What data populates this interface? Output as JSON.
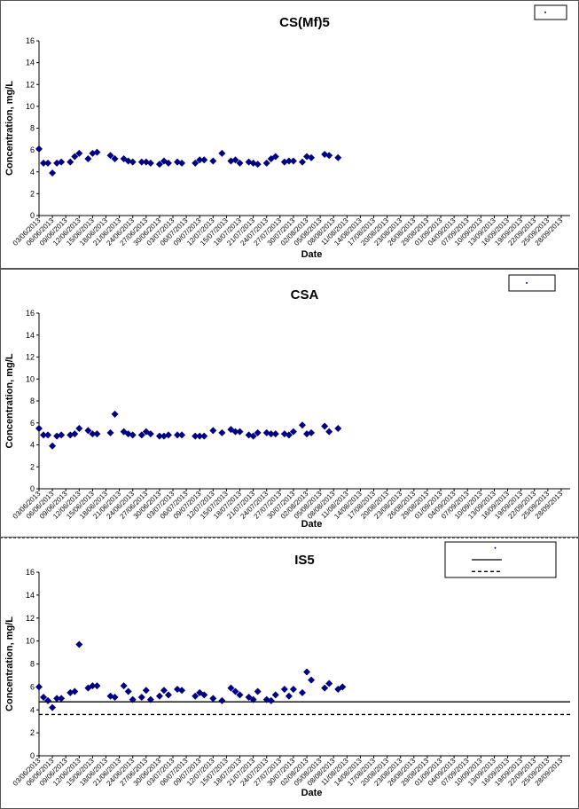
{
  "chart_data": [
    {
      "type": "scatter",
      "title": "CS(Mf)5",
      "xlabel": "Date",
      "ylabel": "Concentration, mg/L",
      "ylim": [
        0,
        16
      ],
      "yticks": [
        0,
        2,
        4,
        6,
        8,
        10,
        12,
        14,
        16
      ],
      "grid": false,
      "legend": "top-right",
      "xlim": [
        "03/06/2013",
        "30/09/2013"
      ],
      "xticks": [
        "03/06/2013",
        "06/06/2013",
        "09/06/2013",
        "12/06/2013",
        "15/06/2013",
        "18/06/2013",
        "21/06/2013",
        "24/06/2013",
        "27/06/2013",
        "30/06/2013",
        "03/07/2013",
        "06/07/2013",
        "09/07/2013",
        "12/07/2013",
        "15/07/2013",
        "18/07/2013",
        "21/07/2013",
        "24/07/2013",
        "27/07/2013",
        "30/07/2013",
        "02/08/2013",
        "05/08/2013",
        "08/08/2013",
        "11/08/2013",
        "14/08/2013",
        "17/08/2013",
        "20/08/2013",
        "23/08/2013",
        "26/08/2013",
        "29/08/2013",
        "01/09/2013",
        "04/09/2013",
        "07/09/2013",
        "10/09/2013",
        "13/09/2013",
        "16/09/2013",
        "19/09/2013",
        "22/09/2013",
        "25/09/2013",
        "28/09/2013"
      ],
      "series": [
        {
          "color": "#000080",
          "marker": "diamond",
          "points": [
            [
              "03/06/2013",
              6.1
            ],
            [
              "04/06/2013",
              4.8
            ],
            [
              "05/06/2013",
              4.8
            ],
            [
              "06/06/2013",
              3.9
            ],
            [
              "07/06/2013",
              4.8
            ],
            [
              "08/06/2013",
              4.9
            ],
            [
              "10/06/2013",
              4.9
            ],
            [
              "11/06/2013",
              5.4
            ],
            [
              "12/06/2013",
              5.7
            ],
            [
              "14/06/2013",
              5.2
            ],
            [
              "15/06/2013",
              5.7
            ],
            [
              "16/06/2013",
              5.8
            ],
            [
              "19/06/2013",
              5.5
            ],
            [
              "20/06/2013",
              5.2
            ],
            [
              "22/06/2013",
              5.2
            ],
            [
              "23/06/2013",
              5.0
            ],
            [
              "24/06/2013",
              4.9
            ],
            [
              "26/06/2013",
              4.9
            ],
            [
              "27/06/2013",
              4.9
            ],
            [
              "28/06/2013",
              4.8
            ],
            [
              "30/06/2013",
              4.7
            ],
            [
              "01/07/2013",
              5.0
            ],
            [
              "02/07/2013",
              4.8
            ],
            [
              "04/07/2013",
              4.9
            ],
            [
              "05/07/2013",
              4.8
            ],
            [
              "08/07/2013",
              4.8
            ],
            [
              "09/07/2013",
              5.1
            ],
            [
              "10/07/2013",
              5.1
            ],
            [
              "12/07/2013",
              5.0
            ],
            [
              "14/07/2013",
              5.7
            ],
            [
              "16/07/2013",
              5.0
            ],
            [
              "17/07/2013",
              5.1
            ],
            [
              "18/07/2013",
              4.8
            ],
            [
              "20/07/2013",
              4.9
            ],
            [
              "21/07/2013",
              4.8
            ],
            [
              "22/07/2013",
              4.7
            ],
            [
              "24/07/2013",
              4.8
            ],
            [
              "25/07/2013",
              5.2
            ],
            [
              "26/07/2013",
              5.4
            ],
            [
              "28/07/2013",
              4.9
            ],
            [
              "29/07/2013",
              5.0
            ],
            [
              "30/07/2013",
              5.0
            ],
            [
              "01/08/2013",
              4.9
            ],
            [
              "02/08/2013",
              5.4
            ],
            [
              "03/08/2013",
              5.3
            ],
            [
              "06/08/2013",
              5.6
            ],
            [
              "07/08/2013",
              5.5
            ],
            [
              "09/08/2013",
              5.3
            ]
          ]
        }
      ]
    },
    {
      "type": "scatter",
      "title": "CSA",
      "xlabel": "Date",
      "ylabel": "Concentration, mg/L",
      "ylim": [
        0,
        16
      ],
      "yticks": [
        0,
        2,
        4,
        6,
        8,
        10,
        12,
        14,
        16
      ],
      "grid": false,
      "legend": "top-right",
      "xlim": [
        "03/06/2013",
        "30/09/2013"
      ],
      "xticks": [
        "03/06/2013",
        "06/06/2013",
        "09/06/2013",
        "12/06/2013",
        "15/06/2013",
        "18/06/2013",
        "21/06/2013",
        "24/06/2013",
        "27/06/2013",
        "30/06/2013",
        "03/07/2013",
        "06/07/2013",
        "09/07/2013",
        "12/07/2013",
        "15/07/2013",
        "18/07/2013",
        "21/07/2013",
        "24/07/2013",
        "27/07/2013",
        "30/07/2013",
        "02/08/2013",
        "05/08/2013",
        "08/08/2013",
        "11/08/2013",
        "14/08/2013",
        "17/08/2013",
        "20/08/2013",
        "23/08/2013",
        "26/08/2013",
        "29/08/2013",
        "01/09/2013",
        "04/09/2013",
        "07/09/2013",
        "10/09/2013",
        "13/09/2013",
        "16/09/2013",
        "19/09/2013",
        "22/09/2013",
        "25/09/2013",
        "28/09/2013"
      ],
      "series": [
        {
          "color": "#000080",
          "marker": "diamond",
          "points": [
            [
              "03/06/2013",
              5.5
            ],
            [
              "04/06/2013",
              4.9
            ],
            [
              "05/06/2013",
              4.9
            ],
            [
              "06/06/2013",
              3.9
            ],
            [
              "07/06/2013",
              4.8
            ],
            [
              "08/06/2013",
              4.9
            ],
            [
              "10/06/2013",
              4.9
            ],
            [
              "11/06/2013",
              5.0
            ],
            [
              "12/06/2013",
              5.5
            ],
            [
              "14/06/2013",
              5.3
            ],
            [
              "15/06/2013",
              5.0
            ],
            [
              "16/06/2013",
              5.0
            ],
            [
              "19/06/2013",
              5.1
            ],
            [
              "20/06/2013",
              6.8
            ],
            [
              "22/06/2013",
              5.2
            ],
            [
              "23/06/2013",
              5.0
            ],
            [
              "24/06/2013",
              4.9
            ],
            [
              "26/06/2013",
              4.9
            ],
            [
              "27/06/2013",
              5.2
            ],
            [
              "28/06/2013",
              5.0
            ],
            [
              "30/06/2013",
              4.8
            ],
            [
              "01/07/2013",
              4.8
            ],
            [
              "02/07/2013",
              4.9
            ],
            [
              "04/07/2013",
              4.9
            ],
            [
              "05/07/2013",
              4.9
            ],
            [
              "08/07/2013",
              4.8
            ],
            [
              "09/07/2013",
              4.8
            ],
            [
              "10/07/2013",
              4.8
            ],
            [
              "12/07/2013",
              5.3
            ],
            [
              "14/07/2013",
              5.1
            ],
            [
              "16/07/2013",
              5.4
            ],
            [
              "17/07/2013",
              5.2
            ],
            [
              "18/07/2013",
              5.2
            ],
            [
              "20/07/2013",
              4.9
            ],
            [
              "21/07/2013",
              4.8
            ],
            [
              "22/07/2013",
              5.1
            ],
            [
              "24/07/2013",
              5.1
            ],
            [
              "25/07/2013",
              5.0
            ],
            [
              "26/07/2013",
              5.0
            ],
            [
              "28/07/2013",
              5.0
            ],
            [
              "29/07/2013",
              4.9
            ],
            [
              "30/07/2013",
              5.2
            ],
            [
              "01/08/2013",
              5.8
            ],
            [
              "02/08/2013",
              5.0
            ],
            [
              "03/08/2013",
              5.1
            ],
            [
              "06/08/2013",
              5.7
            ],
            [
              "07/08/2013",
              5.2
            ],
            [
              "09/08/2013",
              5.5
            ]
          ]
        }
      ]
    },
    {
      "type": "scatter",
      "title": "IS5",
      "xlabel": "Date",
      "ylabel": "Concentration, mg/L",
      "ylim": [
        0,
        16
      ],
      "yticks": [
        0,
        2,
        4,
        6,
        8,
        10,
        12,
        14,
        16
      ],
      "grid": false,
      "legend": "top-right",
      "xlim": [
        "03/06/2013",
        "30/09/2013"
      ],
      "xticks": [
        "03/06/2013",
        "06/06/2013",
        "09/06/2013",
        "12/06/2013",
        "15/06/2013",
        "18/06/2013",
        "21/06/2013",
        "24/06/2013",
        "27/06/2013",
        "30/06/2013",
        "03/07/2013",
        "06/07/2013",
        "09/07/2013",
        "12/07/2013",
        "15/07/2013",
        "18/07/2013",
        "21/07/2013",
        "24/07/2013",
        "27/07/2013",
        "30/07/2013",
        "02/08/2013",
        "05/08/2013",
        "08/08/2013",
        "11/08/2013",
        "14/08/2013",
        "17/08/2013",
        "20/08/2013",
        "23/08/2013",
        "26/08/2013",
        "29/08/2013",
        "01/09/2013",
        "04/09/2013",
        "07/09/2013",
        "10/09/2013",
        "13/09/2013",
        "16/09/2013",
        "19/09/2013",
        "22/09/2013",
        "25/09/2013",
        "28/09/2013"
      ],
      "series": [
        {
          "color": "#000080",
          "marker": "diamond",
          "points": [
            [
              "03/06/2013",
              6.0
            ],
            [
              "04/06/2013",
              5.1
            ],
            [
              "05/06/2013",
              4.8
            ],
            [
              "06/06/2013",
              4.2
            ],
            [
              "07/06/2013",
              5.0
            ],
            [
              "08/06/2013",
              5.0
            ],
            [
              "10/06/2013",
              5.5
            ],
            [
              "11/06/2013",
              5.6
            ],
            [
              "12/06/2013",
              9.7
            ],
            [
              "14/06/2013",
              5.9
            ],
            [
              "15/06/2013",
              6.1
            ],
            [
              "16/06/2013",
              6.1
            ],
            [
              "19/06/2013",
              5.2
            ],
            [
              "20/06/2013",
              5.1
            ],
            [
              "22/06/2013",
              6.1
            ],
            [
              "23/06/2013",
              5.6
            ],
            [
              "24/06/2013",
              4.9
            ],
            [
              "26/06/2013",
              5.1
            ],
            [
              "27/06/2013",
              5.7
            ],
            [
              "28/06/2013",
              4.9
            ],
            [
              "30/06/2013",
              5.2
            ],
            [
              "01/07/2013",
              5.7
            ],
            [
              "02/07/2013",
              5.3
            ],
            [
              "04/07/2013",
              5.8
            ],
            [
              "05/07/2013",
              5.7
            ],
            [
              "08/07/2013",
              5.2
            ],
            [
              "09/07/2013",
              5.5
            ],
            [
              "10/07/2013",
              5.3
            ],
            [
              "12/07/2013",
              5.0
            ],
            [
              "14/07/2013",
              4.8
            ],
            [
              "16/07/2013",
              5.9
            ],
            [
              "17/07/2013",
              5.6
            ],
            [
              "18/07/2013",
              5.3
            ],
            [
              "20/07/2013",
              5.1
            ],
            [
              "21/07/2013",
              4.9
            ],
            [
              "22/07/2013",
              5.6
            ],
            [
              "24/07/2013",
              4.9
            ],
            [
              "25/07/2013",
              4.8
            ],
            [
              "26/07/2013",
              5.3
            ],
            [
              "28/07/2013",
              5.8
            ],
            [
              "29/07/2013",
              5.2
            ],
            [
              "30/07/2013",
              5.8
            ],
            [
              "01/08/2013",
              5.5
            ],
            [
              "02/08/2013",
              7.3
            ],
            [
              "03/08/2013",
              6.6
            ],
            [
              "06/08/2013",
              5.9
            ],
            [
              "07/08/2013",
              6.3
            ],
            [
              "09/08/2013",
              5.8
            ],
            [
              "10/08/2013",
              6.0
            ]
          ]
        }
      ],
      "reference_lines": [
        {
          "style": "solid",
          "y": 4.7,
          "color": "#000000"
        },
        {
          "style": "dashed",
          "y": 3.6,
          "color": "#000000"
        }
      ]
    }
  ]
}
